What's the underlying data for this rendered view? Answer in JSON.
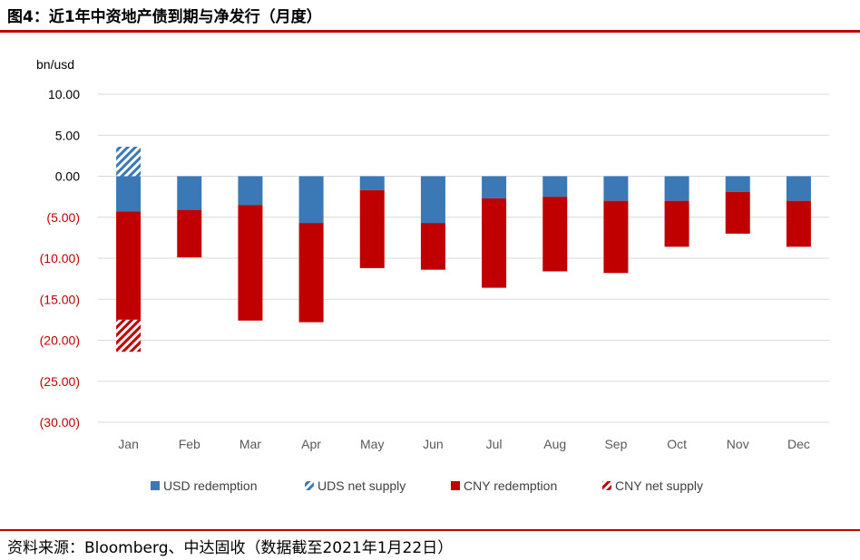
{
  "title": "图4：近1年中资地产债到期与净发行（月度）",
  "source": "资料来源：Bloomberg、中达固收（数据截至2021年1月22日）",
  "colors": {
    "usd": "#3a78b6",
    "cny": "#c00000",
    "rule": "#c00000",
    "negative_tick": "#c00000",
    "grid": "#d9d9d9"
  },
  "chart_data": {
    "type": "bar",
    "stacked": true,
    "ylabel": "bn/usd",
    "ylim": [
      -30,
      10
    ],
    "yticks": [
      10,
      5,
      0,
      -5,
      -10,
      -15,
      -20,
      -25,
      -30
    ],
    "ytick_labels": [
      "10.00",
      "5.00",
      "0.00",
      "(5.00)",
      "(10.00)",
      "(15.00)",
      "(20.00)",
      "(25.00)",
      "(30.00)"
    ],
    "grid": true,
    "legend_position": "bottom",
    "categories": [
      "Jan",
      "Feb",
      "Mar",
      "Apr",
      "May",
      "Jun",
      "Jul",
      "Aug",
      "Sep",
      "Oct",
      "Nov",
      "Dec"
    ],
    "series": [
      {
        "name": "USD redemption",
        "color": "#3a78b6",
        "pattern": "solid",
        "values": [
          -4.3,
          -4.1,
          -3.5,
          -5.7,
          -1.7,
          -5.7,
          -2.7,
          -2.5,
          -3.0,
          -3.0,
          -1.9,
          -3.0
        ]
      },
      {
        "name": "UDS net supply",
        "color": "#3a78b6",
        "pattern": "hatched",
        "values": [
          3.6,
          0,
          0,
          0,
          0,
          0,
          0,
          0,
          0,
          0,
          0,
          0
        ]
      },
      {
        "name": "CNY redemption",
        "color": "#c00000",
        "pattern": "solid",
        "values": [
          -13.2,
          -5.8,
          -14.1,
          -12.1,
          -9.5,
          -5.7,
          -10.9,
          -9.1,
          -8.8,
          -5.6,
          -5.1,
          -5.6
        ]
      },
      {
        "name": "CNY net supply",
        "color": "#c00000",
        "pattern": "hatched",
        "values": [
          -3.9,
          0,
          0,
          0,
          0,
          0,
          0,
          0,
          0,
          0,
          0,
          0
        ]
      }
    ]
  }
}
